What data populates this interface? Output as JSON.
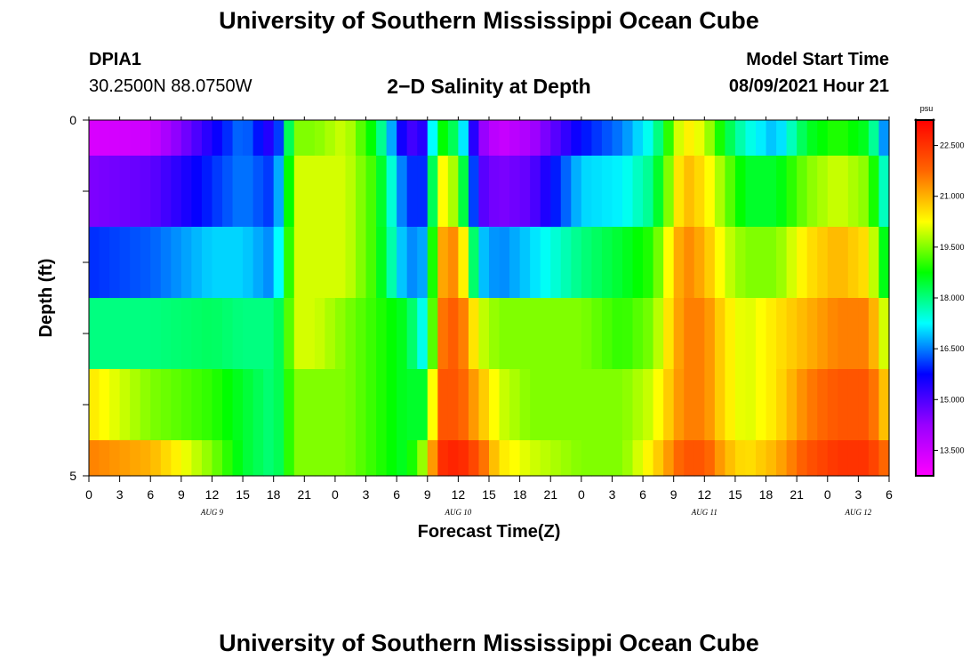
{
  "header": {
    "title": "University of Southern Mississippi Ocean Cube",
    "station_id": "DPIA1",
    "station_coords": "30.2500N  88.0750W",
    "chart_title": "2−D Salinity at Depth",
    "model_label": "Model Start Time",
    "model_value": "08/09/2021 Hour 21"
  },
  "footer": {
    "title": "University of Southern Mississippi Ocean Cube"
  },
  "chart_data": {
    "type": "heatmap",
    "title": "2−D Salinity at Depth",
    "xlabel": "Forecast Time(Z)",
    "ylabel": "Depth (ft)",
    "x_tick_labels": [
      "0",
      "3",
      "6",
      "9",
      "12",
      "15",
      "18",
      "21",
      "0",
      "3",
      "6",
      "9",
      "12",
      "15",
      "18",
      "21",
      "0",
      "3",
      "6",
      "9",
      "12",
      "15",
      "18",
      "21",
      "0",
      "3",
      "6"
    ],
    "x_hours_start": 0,
    "x_hours_end": 78,
    "date_labels": [
      {
        "label": "AUG 9",
        "hour": 12
      },
      {
        "label": "AUG 10",
        "hour": 36
      },
      {
        "label": "AUG 11",
        "hour": 60
      },
      {
        "label": "AUG 12",
        "hour": 75
      }
    ],
    "y_tick_labels": [
      "0",
      "5"
    ],
    "ylim": [
      0,
      5
    ],
    "colorbar": {
      "unit": "psu",
      "range": [
        12.75,
        23.25
      ],
      "tick_labels": [
        "13.500",
        "15.000",
        "16.500",
        "18.000",
        "19.500",
        "21.000",
        "22.500"
      ],
      "tick_values": [
        13.5,
        15.0,
        16.5,
        18.0,
        19.5,
        21.0,
        22.5
      ],
      "colors": [
        "#ff00ff",
        "#9900ff",
        "#0000ff",
        "#00ffff",
        "#00ff00",
        "#ffff00",
        "#ff6600",
        "#ff0000"
      ]
    },
    "rows_depth_ft": [
      0.25,
      1.0,
      2.0,
      3.0,
      4.0,
      4.75
    ],
    "row_bounds_ft": [
      0,
      0.5,
      1.5,
      2.5,
      3.5,
      4.5,
      5
    ],
    "keyframe_hours": [
      0,
      6,
      12,
      15,
      18,
      19,
      20,
      22,
      25,
      28,
      31,
      33,
      34,
      36,
      38,
      40,
      43,
      48,
      52,
      55,
      58,
      60,
      62,
      64,
      67,
      70,
      73,
      76,
      78
    ],
    "salinity": [
      [
        13.3,
        13.5,
        15.5,
        16.5,
        15.2,
        17.0,
        19.5,
        19.5,
        20.0,
        18.5,
        15.0,
        15.5,
        19.0,
        18.0,
        14.5,
        13.5,
        14.0,
        15.8,
        16.5,
        17.5,
        20.5,
        20.0,
        18.5,
        17.5,
        16.8,
        18.5,
        19.0,
        18.5,
        16.0
      ],
      [
        14.5,
        14.8,
        16.0,
        16.5,
        16.0,
        17.5,
        20.0,
        20.0,
        20.0,
        19.0,
        16.0,
        16.0,
        20.5,
        19.5,
        15.0,
        14.5,
        14.8,
        17.0,
        17.2,
        18.0,
        21.0,
        20.5,
        19.5,
        18.5,
        18.5,
        19.5,
        20.0,
        19.5,
        17.0
      ],
      [
        16.0,
        16.3,
        17.0,
        17.0,
        16.5,
        18.0,
        20.0,
        20.0,
        20.0,
        19.0,
        16.5,
        16.8,
        21.0,
        21.5,
        17.0,
        16.5,
        17.0,
        18.0,
        18.5,
        19.0,
        21.5,
        21.0,
        20.0,
        19.5,
        19.5,
        20.5,
        21.0,
        20.5,
        18.0
      ],
      [
        18.0,
        18.0,
        18.2,
        18.0,
        18.0,
        18.5,
        20.0,
        20.0,
        19.5,
        19.0,
        18.5,
        17.0,
        21.5,
        22.0,
        20.0,
        19.5,
        19.5,
        19.5,
        19.0,
        19.5,
        21.5,
        21.5,
        20.5,
        20.0,
        20.5,
        21.0,
        21.5,
        21.5,
        19.5
      ],
      [
        20.5,
        19.5,
        19.0,
        18.5,
        18.0,
        18.5,
        19.5,
        19.5,
        19.5,
        19.0,
        18.5,
        18.5,
        22.0,
        22.0,
        21.0,
        20.0,
        19.5,
        19.5,
        19.5,
        20.0,
        21.5,
        21.5,
        20.5,
        20.0,
        20.5,
        21.5,
        22.0,
        22.0,
        20.5
      ],
      [
        21.5,
        21.0,
        19.5,
        18.5,
        18.0,
        18.5,
        19.5,
        19.5,
        19.5,
        19.0,
        18.5,
        20.0,
        22.5,
        22.8,
        22.0,
        20.5,
        20.0,
        19.5,
        19.5,
        20.5,
        22.0,
        22.0,
        21.0,
        20.5,
        21.0,
        22.0,
        22.5,
        22.5,
        21.5
      ]
    ]
  }
}
